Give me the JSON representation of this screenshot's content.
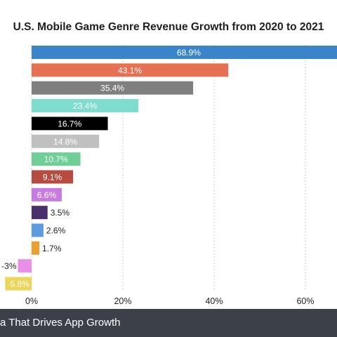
{
  "chart_data": {
    "type": "bar",
    "orientation": "horizontal",
    "title": "U.S. Mobile Game Genre Revenue Growth from 2020 to 2021",
    "xlim": [
      0,
      70
    ],
    "x_ticks": [
      0,
      20,
      40,
      60
    ],
    "x_tick_labels": [
      "0%",
      "20%",
      "40%",
      "60%"
    ],
    "grid": "vertical dotted",
    "value_labels": [
      "68.9%",
      "43.1%",
      "35.4%",
      "23.4%",
      "16.7%",
      "14.8%",
      "10.7%",
      "9.1%",
      "6.6%",
      "3.5%",
      "2.6%",
      "1.7%",
      "-3%",
      "-5.8%"
    ],
    "values": [
      68.9,
      43.1,
      35.4,
      23.4,
      16.7,
      14.8,
      10.7,
      9.1,
      6.6,
      3.5,
      2.6,
      1.7,
      -3.0,
      -5.8
    ],
    "colors": [
      "#3a84c9",
      "#e57052",
      "#7f7f7f",
      "#7fddd0",
      "#000000",
      "#c0c0c0",
      "#6fcf97",
      "#b64c40",
      "#c77be0",
      "#4a2f6e",
      "#5b9bdf",
      "#e8a033",
      "#ea8fe6",
      "#ecd65a"
    ],
    "label_colors": [
      "#ffffff",
      "#ffffff",
      "#ffffff",
      "#ffffff",
      "#ffffff",
      "#ffffff",
      "#ffffff",
      "#ffffff",
      "#ffffff",
      "#1e1e1e",
      "#1e1e1e",
      "#1e1e1e",
      "#1e1e1e",
      "#ffffff"
    ]
  },
  "footer": {
    "text": "a That Drives App Growth"
  }
}
